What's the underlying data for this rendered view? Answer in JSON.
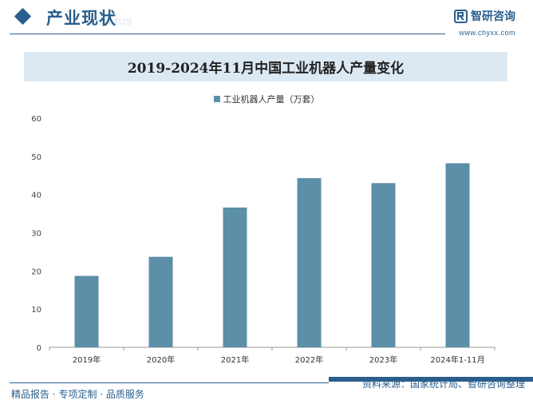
{
  "header": {
    "section_title": "产业现状",
    "section_subtitle": "Status",
    "brand_name": "智研咨询",
    "brand_url": "www.chyxx.com"
  },
  "footer": {
    "left_text": "精品报告 · 专项定制 · 品质服务",
    "source_text": "资料来源：国家统计局、智研咨询整理"
  },
  "colors": {
    "bar": "#5c8fa8",
    "accent": "#2a5e8c"
  },
  "chart_data": {
    "type": "bar",
    "title": "2019-2024年11月中国工业机器人产量变化",
    "categories": [
      "2019年",
      "2020年",
      "2021年",
      "2022年",
      "2023年",
      "2024年1-11月"
    ],
    "series": [
      {
        "name": "工业机器人产量（万套）",
        "values": [
          18.7,
          23.7,
          36.6,
          44.3,
          43.0,
          48.2
        ]
      }
    ],
    "ylim": [
      0,
      60
    ],
    "yticks": [
      0,
      10,
      20,
      30,
      40,
      50,
      60
    ],
    "xlabel": "",
    "ylabel": "",
    "legend": "top-center",
    "grid": false
  }
}
